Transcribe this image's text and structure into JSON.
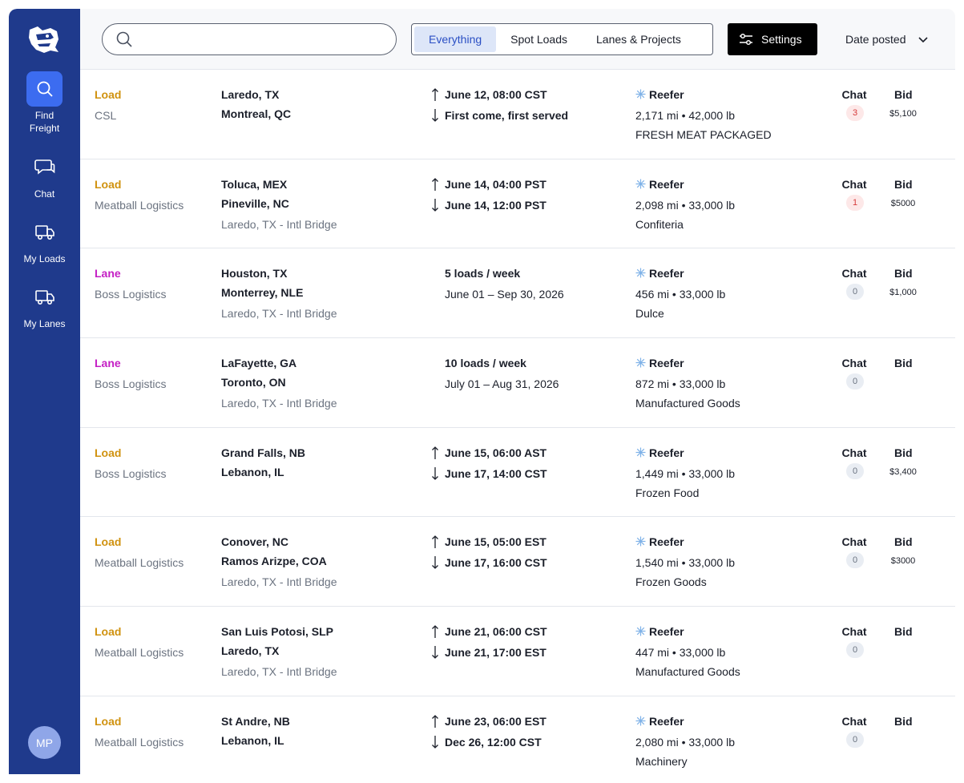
{
  "sidebar": {
    "items": [
      {
        "label": "Find\nFreight",
        "icon": "search-icon"
      },
      {
        "label": "Chat",
        "icon": "chat-icon"
      },
      {
        "label": "My Loads",
        "icon": "truck-icon"
      },
      {
        "label": "My Lanes",
        "icon": "truck-icon"
      }
    ],
    "avatar": "MP"
  },
  "search": {
    "value": "",
    "placeholder": ""
  },
  "filters": {
    "tabs": [
      "Everything",
      "Spot Loads",
      "Lanes & Projects"
    ],
    "active": "Everything"
  },
  "settings_label": "Settings",
  "sort_label": "Date posted",
  "columns": {
    "chat": "Chat",
    "bid": "Bid"
  },
  "rows": [
    {
      "type": "Load",
      "carrier": "CSL",
      "origin": "Laredo, TX",
      "destination": "Montreal, QC",
      "via": "",
      "time1": "June 12, 08:00 CST",
      "time2": "First come, first served",
      "equipment": "Reefer",
      "distance_weight": "2,171 mi • 42,000 lb",
      "commodity": "FRESH MEAT PACKAGED",
      "chat_count": "3",
      "bid": "$5,100"
    },
    {
      "type": "Load",
      "carrier": "Meatball Logistics",
      "origin": "Toluca, MEX",
      "destination": "Pineville, NC",
      "via": "Laredo, TX - Intl Bridge",
      "time1": "June 14, 04:00 PST",
      "time2": "June 14, 12:00 PST",
      "equipment": "Reefer",
      "distance_weight": "2,098 mi • 33,000 lb",
      "commodity": "Confiteria",
      "chat_count": "1",
      "bid": "$5000"
    },
    {
      "type": "Lane",
      "carrier": "Boss Logistics",
      "origin": "Houston, TX",
      "destination": "Monterrey, NLE",
      "via": "Laredo, TX - Intl Bridge",
      "time1": "5 loads / week",
      "time2": "June 01 – Sep 30, 2026",
      "equipment": "Reefer",
      "distance_weight": "456 mi • 33,000 lb",
      "commodity": "Dulce",
      "chat_count": "0",
      "bid": "$1,000"
    },
    {
      "type": "Lane",
      "carrier": "Boss Logistics",
      "origin": "LaFayette, GA",
      "destination": "Toronto, ON",
      "via": "Laredo, TX - Intl Bridge",
      "time1": "10 loads / week",
      "time2": "July 01 – Aug 31, 2026",
      "equipment": "Reefer",
      "distance_weight": "872 mi • 33,000 lb",
      "commodity": "Manufactured Goods",
      "chat_count": "0",
      "bid": ""
    },
    {
      "type": "Load",
      "carrier": "Boss Logistics",
      "origin": "Grand Falls, NB",
      "destination": "Lebanon, IL",
      "via": "",
      "time1": "June 15, 06:00 AST",
      "time2": "June 17, 14:00 CST",
      "equipment": "Reefer",
      "distance_weight": "1,449 mi • 33,000 lb",
      "commodity": "Frozen Food",
      "chat_count": "0",
      "bid": "$3,400"
    },
    {
      "type": "Load",
      "carrier": "Meatball Logistics",
      "origin": "Conover, NC",
      "destination": "Ramos Arizpe, COA",
      "via": "Laredo, TX - Intl Bridge",
      "time1": "June 15, 05:00 EST",
      "time2": "June 17, 16:00 CST",
      "equipment": "Reefer",
      "distance_weight": "1,540 mi • 33,000 lb",
      "commodity": "Frozen Goods",
      "chat_count": "0",
      "bid": "$3000"
    },
    {
      "type": "Load",
      "carrier": "Meatball Logistics",
      "origin": "San Luis Potosi, SLP",
      "destination": "Laredo, TX",
      "via": "Laredo, TX - Intl Bridge",
      "time1": "June 21, 06:00 CST",
      "time2": "June 21, 17:00 EST",
      "equipment": "Reefer",
      "distance_weight": "447 mi • 33,000 lb",
      "commodity": "Manufactured Goods",
      "chat_count": "0",
      "bid": ""
    },
    {
      "type": "Load",
      "carrier": "Meatball Logistics",
      "origin": "St Andre, NB",
      "destination": "Lebanon, IL",
      "via": "",
      "time1": "June 23, 06:00 EST",
      "time2": "Dec 26, 12:00 CST",
      "equipment": "Reefer",
      "distance_weight": "2,080 mi • 33,000 lb",
      "commodity": "Machinery",
      "chat_count": "0",
      "bid": ""
    }
  ],
  "colors": {
    "sidebar": "#1f3a8c",
    "active_nav": "#3c6cf0",
    "load": "#d0920f",
    "lane": "#c41fc4",
    "accent": "#2a4fc4",
    "reefer": "#7fb2e8"
  }
}
